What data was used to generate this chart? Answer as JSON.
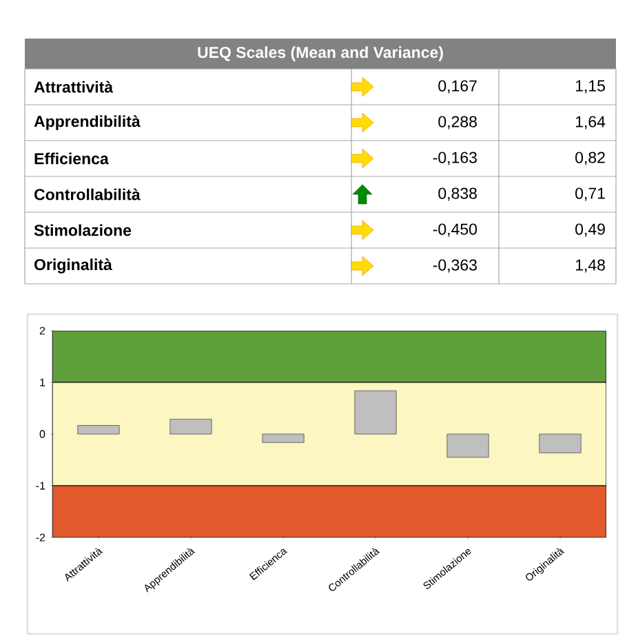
{
  "chart_data": [
    {
      "type": "other",
      "title": "UEQ Scales (Mean and Variance)",
      "categories": [
        "Attrattività",
        "Apprendibilità",
        "Efficienca",
        "Controllabilità",
        "Stimolazione",
        "Originalità"
      ],
      "series": [
        {
          "values": [
            0.167,
            0.288,
            -0.163,
            0.838,
            -0.45,
            -0.363
          ],
          "value_labels": [
            "0,167",
            "0,288",
            "-0,163",
            "0,838",
            "-0,450",
            "-0,363"
          ]
        },
        {
          "values": [
            1.15,
            1.64,
            0.82,
            0.71,
            0.49,
            1.48
          ],
          "value_labels": [
            "1,15",
            "1,64",
            "0,82",
            "0,71",
            "0,49",
            "1,48"
          ]
        }
      ]
    },
    {
      "type": "bar",
      "categories": [
        "Attrattività",
        "Apprendibilità",
        "Efficienca",
        "Controllabilità",
        "Stimolazione",
        "Originalità"
      ],
      "values": [
        0.167,
        0.288,
        -0.163,
        0.838,
        -0.45,
        -0.363
      ],
      "color": "#bfbfbf",
      "ylim": [
        -2,
        2
      ],
      "yticks": [
        -2,
        -1,
        0,
        1,
        2
      ],
      "bands": [
        {
          "axis": "y",
          "from": 1,
          "to": 2,
          "color": "#5e9f3a"
        },
        {
          "axis": "y",
          "from": -1,
          "to": 1,
          "color": "#fbf6c2"
        },
        {
          "axis": "y",
          "from": -2,
          "to": -1,
          "color": "#e25a2c"
        }
      ]
    }
  ]
}
